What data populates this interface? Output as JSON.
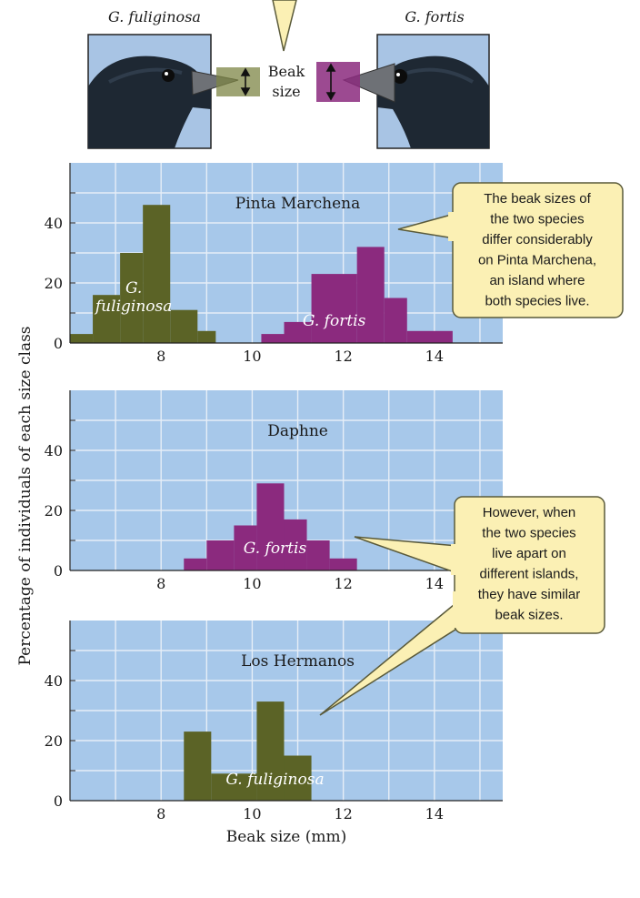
{
  "header": {
    "left_species": "G. fuliginosa",
    "right_species": "G. fortis",
    "beak_label_line1": "Beak",
    "beak_label_line2": "size"
  },
  "callouts": {
    "top": [
      "The beak sizes of",
      "the two species",
      "differ considerably",
      "on Pinta Marchena,",
      "an island where",
      "both species live."
    ],
    "bottom": [
      "However, when",
      "the two species",
      "live apart on",
      "different islands,",
      "they have similar",
      "beak sizes."
    ]
  },
  "colors": {
    "plot_background": "#a7c8ea",
    "grid": "#e6eef7",
    "fuliginosa": "#5b6326",
    "fortis": "#8b2a7e",
    "callout_fill": "#fbf0b4",
    "callout_stroke": "#5a5a3a"
  },
  "chart_data": {
    "type": "bar",
    "ylabel": "Percentage of individuals of each size class",
    "xlabel": "Beak size (mm)",
    "xlim": [
      6,
      15.5
    ],
    "ylim": [
      0,
      60
    ],
    "xticks": [
      8,
      10,
      12,
      14
    ],
    "yticks": [
      0,
      20,
      40
    ],
    "panels": [
      {
        "title": "Pinta Marchena",
        "series": [
          {
            "name": "G. fuliginosa",
            "label_lines": [
              "G.",
              "fuliginosa"
            ],
            "color": "#5b6326",
            "bins": [
              {
                "x0": 6.0,
                "x1": 6.5,
                "value": 3
              },
              {
                "x0": 6.5,
                "x1": 7.1,
                "value": 16
              },
              {
                "x0": 7.1,
                "x1": 7.6,
                "value": 30
              },
              {
                "x0": 7.6,
                "x1": 8.2,
                "value": 46
              },
              {
                "x0": 8.2,
                "x1": 8.8,
                "value": 11
              },
              {
                "x0": 8.8,
                "x1": 9.2,
                "value": 4
              }
            ]
          },
          {
            "name": "G. fortis",
            "label_lines": [
              "G. fortis"
            ],
            "color": "#8b2a7e",
            "bins": [
              {
                "x0": 10.2,
                "x1": 10.7,
                "value": 3
              },
              {
                "x0": 10.7,
                "x1": 11.3,
                "value": 7
              },
              {
                "x0": 11.3,
                "x1": 12.3,
                "value": 23
              },
              {
                "x0": 12.3,
                "x1": 12.9,
                "value": 32
              },
              {
                "x0": 12.9,
                "x1": 13.4,
                "value": 15
              },
              {
                "x0": 13.4,
                "x1": 14.4,
                "value": 4
              }
            ]
          }
        ]
      },
      {
        "title": "Daphne",
        "series": [
          {
            "name": "G. fortis",
            "label_lines": [
              "G. fortis"
            ],
            "color": "#8b2a7e",
            "bins": [
              {
                "x0": 8.5,
                "x1": 9.0,
                "value": 4
              },
              {
                "x0": 9.0,
                "x1": 9.6,
                "value": 10
              },
              {
                "x0": 9.6,
                "x1": 10.1,
                "value": 15
              },
              {
                "x0": 10.1,
                "x1": 10.7,
                "value": 29
              },
              {
                "x0": 10.7,
                "x1": 11.2,
                "value": 17
              },
              {
                "x0": 11.2,
                "x1": 11.7,
                "value": 10
              },
              {
                "x0": 11.7,
                "x1": 12.3,
                "value": 4
              }
            ]
          }
        ]
      },
      {
        "title": "Los Hermanos",
        "series": [
          {
            "name": "G. fuliginosa",
            "label_lines": [
              "G. fuliginosa"
            ],
            "color": "#5b6326",
            "bins": [
              {
                "x0": 8.5,
                "x1": 9.1,
                "value": 23
              },
              {
                "x0": 9.1,
                "x1": 10.1,
                "value": 9
              },
              {
                "x0": 10.1,
                "x1": 10.7,
                "value": 33
              },
              {
                "x0": 10.7,
                "x1": 11.3,
                "value": 15
              }
            ]
          }
        ]
      }
    ]
  }
}
